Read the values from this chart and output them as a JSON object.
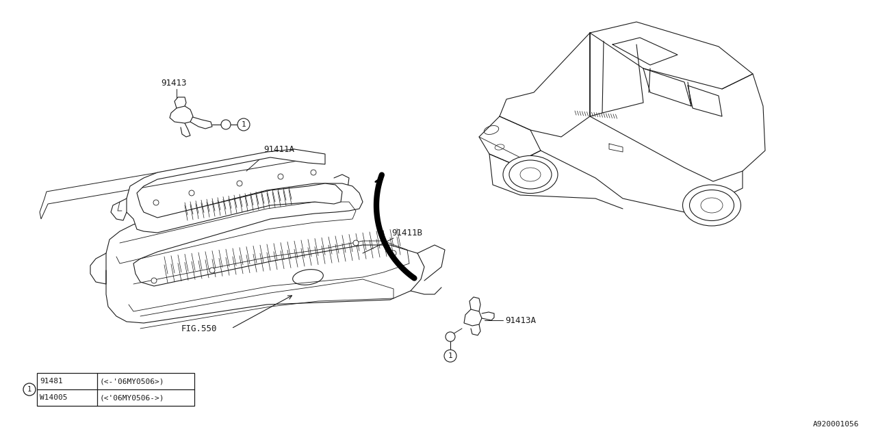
{
  "bg_color": "#ffffff",
  "line_color": "#1a1a1a",
  "fig_width": 12.8,
  "fig_height": 6.4,
  "dpi": 100,
  "diagram_id": "A920001056",
  "label_91413": "91413",
  "label_91411A": "91411A",
  "label_91411B": "91411B",
  "label_91413A": "91413A",
  "label_FIG550": "FIG.550",
  "table_row1_part": "91481",
  "table_row1_note": "(<-'06MY0506>)",
  "table_row2_part": "W14005",
  "table_row2_note": "(<'06MY0506->)",
  "font_family": "DejaVu Sans Mono",
  "lfs": 9
}
